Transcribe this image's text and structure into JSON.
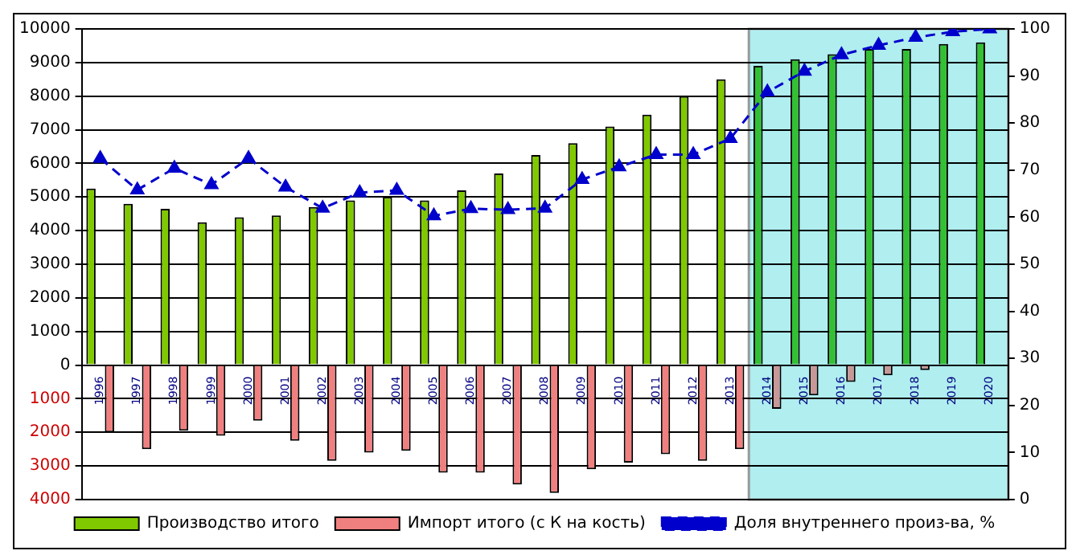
{
  "chart_data": {
    "type": "bar",
    "categories": [
      "1996",
      "1997",
      "1998",
      "1999",
      "2000",
      "2001",
      "2002",
      "2003",
      "2004",
      "2005",
      "2006",
      "2007",
      "2008",
      "2009",
      "2010",
      "2011",
      "2012",
      "2013",
      "2014",
      "2015",
      "2016",
      "2017",
      "2018",
      "2019",
      "2020"
    ],
    "series": [
      {
        "name": "Производство итого",
        "color": "#80c800",
        "colors": [
          "#80c800",
          "#80c800",
          "#80c800",
          "#80c800",
          "#80c800",
          "#80c800",
          "#80c800",
          "#80c800",
          "#80c800",
          "#80c800",
          "#80c800",
          "#80c800",
          "#80c800",
          "#80c800",
          "#80c800",
          "#80c800",
          "#80c800",
          "#80c800",
          "#33c033",
          "#33c033",
          "#33c033",
          "#33c033",
          "#33c033",
          "#33c033",
          "#33c033"
        ],
        "values": [
          5250,
          4800,
          4650,
          4250,
          4400,
          4450,
          4700,
          4900,
          5000,
          4900,
          5200,
          5700,
          6250,
          6600,
          7100,
          7450,
          8000,
          8500,
          8900,
          9100,
          9250,
          9400,
          9400,
          9550,
          9600
        ]
      },
      {
        "name": "Импорт итого (с К на кость)",
        "color": "#f08080",
        "colors": [
          "#f08080",
          "#f08080",
          "#f08080",
          "#f08080",
          "#f08080",
          "#f08080",
          "#f08080",
          "#f08080",
          "#f08080",
          "#f08080",
          "#f08080",
          "#f08080",
          "#f08080",
          "#f08080",
          "#f08080",
          "#f08080",
          "#f08080",
          "#f08080",
          "#c89898",
          "#c89898",
          "#c89898",
          "#c89898",
          "#c89898",
          "#c89898",
          "#c89898"
        ],
        "values": [
          -2000,
          -2500,
          -1950,
          -2100,
          -1650,
          -2250,
          -2850,
          -2600,
          -2550,
          -3200,
          -3200,
          -3550,
          -3800,
          -3100,
          -2900,
          -2650,
          -2850,
          -2500,
          -1300,
          -900,
          -500,
          -300,
          -150,
          0,
          0
        ]
      },
      {
        "name": "Доля внутреннего произ-ва, %",
        "type": "line",
        "axis": "y2",
        "color": "#0000cc",
        "marker": "triangle",
        "line_style": "dashed",
        "values": [
          72.5,
          65.8,
          70.4,
          66.9,
          72.5,
          66.4,
          61.9,
          65.2,
          65.7,
          60.3,
          61.8,
          61.6,
          61.9,
          68.0,
          70.7,
          73.3,
          73.3,
          76.7,
          86.6,
          91.0,
          94.5,
          96.5,
          98.2,
          99.4,
          100
        ]
      }
    ],
    "ylim": [
      -4000,
      10000
    ],
    "yticks": [
      {
        "value": -4000,
        "label": "4000"
      },
      {
        "value": -3000,
        "label": "3000"
      },
      {
        "value": -2000,
        "label": "2000"
      },
      {
        "value": -1000,
        "label": "1000"
      },
      0,
      1000,
      2000,
      3000,
      4000,
      5000,
      6000,
      7000,
      8000,
      9000,
      10000
    ],
    "y2lim": [
      0,
      100
    ],
    "y2ticks": [
      0,
      10,
      20,
      30,
      40,
      50,
      60,
      70,
      80,
      90,
      100
    ],
    "bands": [
      {
        "axis": "x",
        "from": "2014",
        "to": "2020",
        "color": "#b0eef0"
      }
    ],
    "grid": "y",
    "legend": "bottom"
  }
}
